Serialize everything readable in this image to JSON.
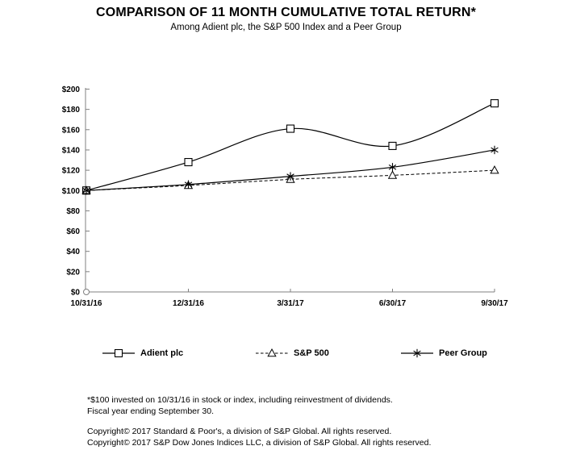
{
  "title": "COMPARISON OF 11 MONTH CUMULATIVE TOTAL RETURN*",
  "subtitle": "Among Adient plc, the S&P 500 Index and a Peer Group",
  "chart_data": {
    "type": "line",
    "x_labels": [
      "10/31/16",
      "12/31/16",
      "3/31/17",
      "6/30/17",
      "9/30/17"
    ],
    "series": [
      {
        "name": "Adient plc",
        "marker": "square",
        "line": "solid",
        "values": [
          100,
          128,
          161,
          144,
          186
        ]
      },
      {
        "name": "S&P 500",
        "marker": "triangle",
        "line": "dashed",
        "values": [
          100,
          105,
          111,
          115,
          120
        ]
      },
      {
        "name": "Peer Group",
        "marker": "asterisk",
        "line": "solid",
        "values": [
          100,
          106,
          114,
          123,
          140
        ]
      }
    ],
    "y_ticks": [
      0,
      20,
      40,
      60,
      80,
      100,
      120,
      140,
      160,
      180,
      200
    ],
    "y_tick_prefix": "$",
    "ylim": [
      0,
      200
    ],
    "grid": false,
    "legend_position": "bottom",
    "colors": {
      "line": "#000000",
      "axis": "#808080",
      "text": "#000000",
      "background": "#ffffff"
    }
  },
  "footnotes": {
    "line1": "*$100 invested on 10/31/16 in stock or index, including reinvestment of dividends.",
    "line2": "Fiscal year ending September 30.",
    "line3": "Copyright© 2017 Standard & Poor's, a division of S&P Global.  All rights reserved.",
    "line4": "Copyright© 2017 S&P Dow Jones Indices LLC, a division of S&P Global.  All rights reserved."
  }
}
